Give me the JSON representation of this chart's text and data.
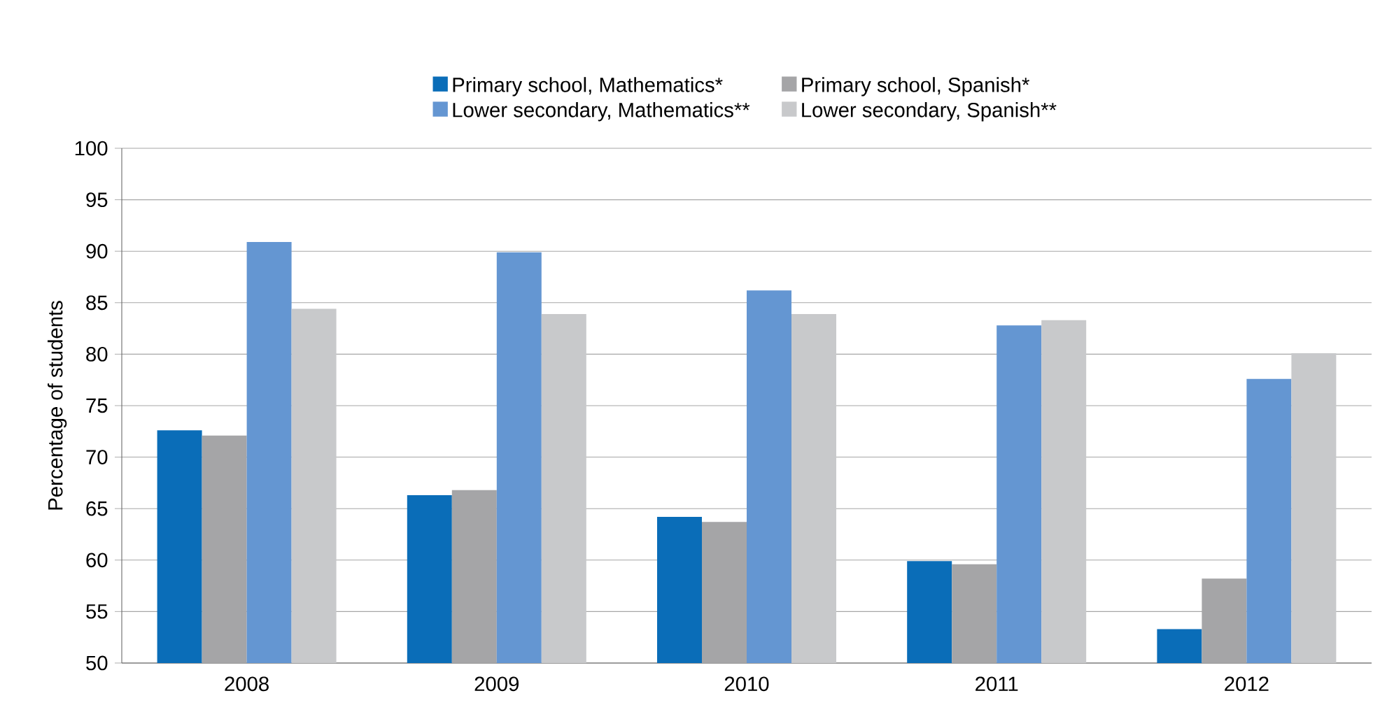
{
  "chart_data": {
    "type": "bar",
    "ylabel": "Percentage of students",
    "categories": [
      "2008",
      "2009",
      "2010",
      "2011",
      "2012"
    ],
    "series": [
      {
        "name": "Primary school, Mathematics*",
        "color": "#0a6db8",
        "values": [
          72.6,
          66.3,
          64.2,
          59.9,
          53.3
        ]
      },
      {
        "name": "Primary school, Spanish*",
        "color": "#a5a5a7",
        "values": [
          72.1,
          66.8,
          63.7,
          59.6,
          58.2
        ]
      },
      {
        "name": "Lower secondary, Mathematics**",
        "color": "#6496d2",
        "values": [
          90.9,
          89.9,
          86.2,
          82.8,
          77.6
        ]
      },
      {
        "name": "Lower secondary, Spanish**",
        "color": "#c8c9cb",
        "values": [
          84.4,
          83.9,
          83.9,
          83.3,
          80.1
        ]
      }
    ],
    "ylim": [
      50,
      100
    ],
    "yticks": [
      50,
      55,
      60,
      65,
      70,
      75,
      80,
      85,
      90,
      95,
      100
    ],
    "grid": "y",
    "legend": "top"
  }
}
